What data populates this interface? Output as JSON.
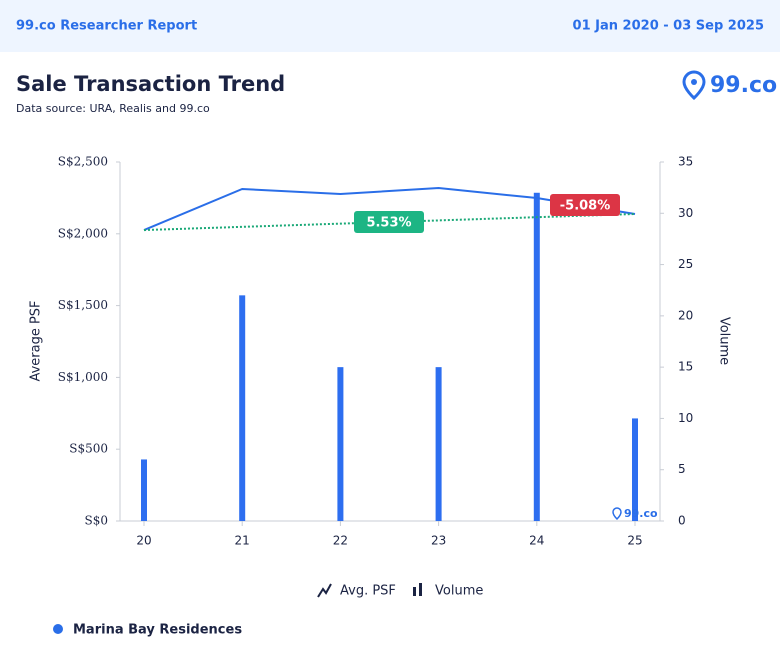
{
  "header": {
    "title": "99.co Researcher Report",
    "date_range": "01 Jan 2020 - 03 Sep 2025"
  },
  "logo": "99.co",
  "chart_data": {
    "type": "combo",
    "title": "Sale Transaction Trend",
    "subtitle": "Data source: URA, Realis and 99.co",
    "y_label": "Average PSF",
    "y2_label": "Volume",
    "categories": [
      "20",
      "21",
      "22",
      "23",
      "24",
      "25"
    ],
    "series": [
      {
        "name": "Avg. PSF",
        "type": "line",
        "color": "#2a6ee8",
        "values": [
          2026,
          2312,
          2277,
          2319,
          2249,
          2138
        ]
      },
      {
        "name": "Volume",
        "type": "bar",
        "axis": "y2",
        "color": "#2d6ef0",
        "values": [
          6,
          22,
          15,
          15,
          32,
          10
        ]
      }
    ],
    "annotations": [
      {
        "text": "5.53%",
        "color": "#1db584"
      },
      {
        "text": "-5.08%",
        "color": "#dc3545"
      }
    ],
    "trend_color": "#1aa877",
    "ylim": [
      0,
      2500
    ],
    "yticks": [
      {
        "value": 0,
        "label": "S$0"
      },
      {
        "value": 500,
        "label": "S$500"
      },
      {
        "value": 1000,
        "label": "S$1,000"
      },
      {
        "value": 1500,
        "label": "S$1,500"
      },
      {
        "value": 2000,
        "label": "S$2,000"
      },
      {
        "value": 2500,
        "label": "S$2,500"
      }
    ],
    "y2lim": [
      0,
      35
    ],
    "y2ticks": [
      0,
      5,
      10,
      15,
      20,
      25,
      30,
      35
    ],
    "grid": false
  },
  "footer": {
    "property": "Marina Bay Residences",
    "color": "#2a6ee8"
  }
}
